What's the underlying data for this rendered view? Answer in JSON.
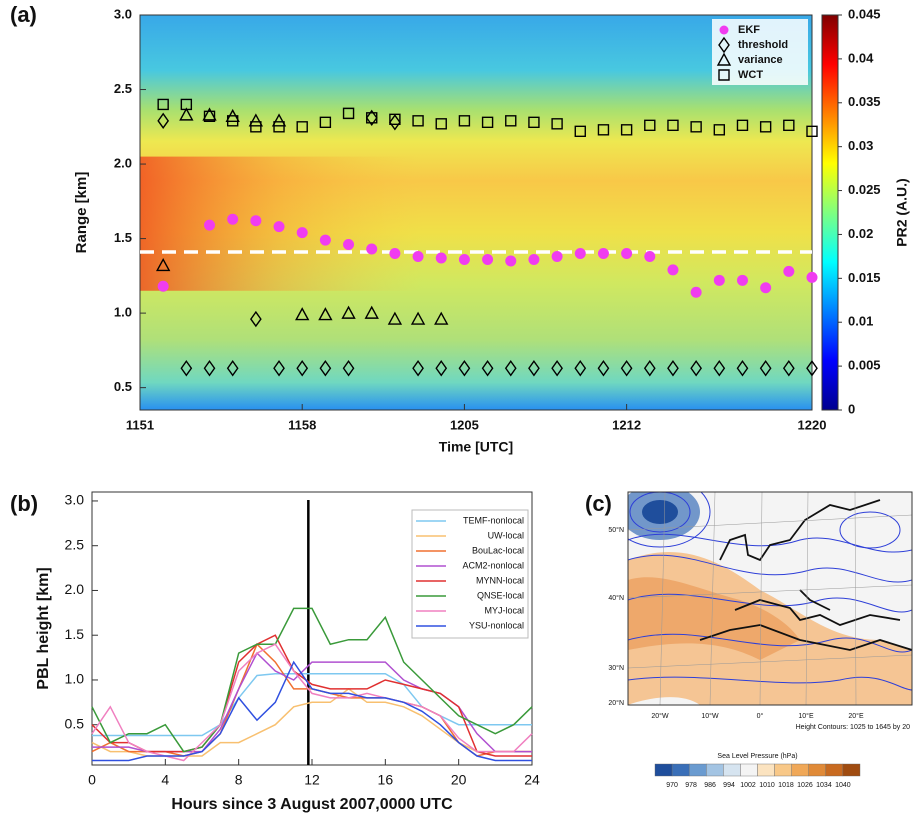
{
  "chart_data": [
    {
      "type": "scatter",
      "panel_label": "(a)",
      "xlabel": "Time [UTC]",
      "ylabel": "Range [km]",
      "xlim": [
        711,
        740
      ],
      "xticks": [
        {
          "value": 711,
          "label": "1151"
        },
        {
          "value": 718,
          "label": "1158"
        },
        {
          "value": 725,
          "label": "1205"
        },
        {
          "value": 732,
          "label": "1212"
        },
        {
          "value": 740,
          "label": "1220"
        }
      ],
      "ylim": [
        0.35,
        3.0
      ],
      "yticks": [
        0.5,
        {
          "value": 1,
          "label": "1.0"
        },
        1.5,
        {
          "value": 2,
          "label": "2.0"
        },
        2.5,
        {
          "value": 3,
          "label": "3.0"
        }
      ],
      "reference_line": {
        "y": 1.41,
        "color": "#ffffff"
      },
      "legend": "upper right",
      "series": [
        {
          "name": "EKF",
          "marker": "circle",
          "color": "#f03cf0",
          "x": [
            712,
            714,
            715,
            716,
            717,
            718,
            719,
            720,
            721,
            722,
            723,
            724,
            725,
            726,
            727,
            728,
            729,
            730,
            731,
            732,
            733,
            734,
            735,
            736,
            737,
            738,
            739,
            740
          ],
          "values": [
            1.18,
            1.59,
            1.63,
            1.62,
            1.58,
            1.54,
            1.49,
            1.46,
            1.43,
            1.4,
            1.38,
            1.37,
            1.36,
            1.36,
            1.35,
            1.36,
            1.38,
            1.4,
            1.4,
            1.4,
            1.38,
            1.29,
            1.14,
            1.22,
            1.22,
            1.17,
            1.28,
            1.24
          ]
        },
        {
          "name": "threshold",
          "marker": "diamond",
          "color": "#000000",
          "x": [
            712,
            713,
            714,
            715,
            716,
            717,
            718,
            719,
            720,
            721,
            722,
            723,
            724,
            725,
            726,
            727,
            728,
            729,
            730,
            731,
            732,
            733,
            734,
            735,
            736,
            737,
            738,
            739,
            740
          ],
          "values": [
            2.29,
            0.63,
            0.63,
            0.63,
            0.96,
            0.63,
            0.63,
            0.63,
            0.63,
            2.31,
            2.28,
            0.63,
            0.63,
            0.63,
            0.63,
            0.63,
            0.63,
            0.63,
            0.63,
            0.63,
            0.63,
            0.63,
            0.63,
            0.63,
            0.63,
            0.63,
            0.63,
            0.63,
            0.63
          ]
        },
        {
          "name": "variance",
          "marker": "triangle",
          "color": "#000000",
          "x": [
            712,
            713,
            714,
            715,
            716,
            717,
            718,
            719,
            720,
            721,
            722,
            723,
            724
          ],
          "values": [
            1.32,
            2.33,
            2.33,
            2.32,
            2.29,
            2.29,
            0.99,
            0.99,
            1.0,
            1.0,
            0.96,
            0.96,
            0.96
          ]
        },
        {
          "name": "WCT",
          "marker": "square",
          "color": "#000000",
          "x": [
            712,
            713,
            714,
            715,
            716,
            717,
            718,
            719,
            720,
            721,
            722,
            723,
            724,
            725,
            726,
            727,
            728,
            729,
            730,
            731,
            732,
            733,
            734,
            735,
            736,
            737,
            738,
            739,
            740
          ],
          "values": [
            2.4,
            2.4,
            2.32,
            2.29,
            2.25,
            2.25,
            2.25,
            2.28,
            2.34,
            2.31,
            2.3,
            2.29,
            2.27,
            2.29,
            2.28,
            2.29,
            2.28,
            2.27,
            2.22,
            2.23,
            2.23,
            2.26,
            2.26,
            2.25,
            2.23,
            2.26,
            2.25,
            2.26,
            2.22
          ]
        }
      ],
      "colorbar": {
        "label": "PR2 (A.U.)",
        "lim": [
          0,
          0.045
        ],
        "ticks": [
          0,
          0.005,
          0.01,
          0.015,
          0.02,
          0.025,
          0.03,
          0.035,
          0.04,
          0.045
        ]
      }
    },
    {
      "type": "line",
      "panel_label": "(b)",
      "xlabel": "Hours since 3 August 2007,0000 UTC",
      "ylabel": "PBL height [km]",
      "x": [
        0,
        1,
        2,
        3,
        4,
        5,
        6,
        7,
        8,
        9,
        10,
        11,
        12,
        13,
        14,
        15,
        16,
        17,
        18,
        19,
        20,
        21,
        22,
        23,
        24
      ],
      "xlim": [
        0,
        24
      ],
      "xticks": [
        0,
        4,
        8,
        12,
        16,
        20,
        24
      ],
      "ylim": [
        0.05,
        3.1
      ],
      "yticks": [
        0.5,
        {
          "value": 1,
          "label": "1.0"
        },
        1.5,
        {
          "value": 2,
          "label": "2.0"
        },
        2.5,
        {
          "value": 3,
          "label": "3.0"
        }
      ],
      "vline": 11.8,
      "legend": "upper right",
      "series": [
        {
          "name": "TEMF-nonlocal",
          "color": "#7ec8f0",
          "values": [
            0.38,
            0.38,
            0.38,
            0.38,
            0.38,
            0.38,
            0.38,
            0.5,
            0.8,
            1.05,
            1.07,
            1.07,
            1.07,
            1.07,
            1.07,
            1.07,
            1.07,
            0.95,
            0.7,
            0.6,
            0.5,
            0.5,
            0.5,
            0.5,
            0.5
          ]
        },
        {
          "name": "UW-local",
          "color": "#f8c070",
          "values": [
            0.3,
            0.2,
            0.2,
            0.15,
            0.15,
            0.15,
            0.15,
            0.3,
            0.3,
            0.4,
            0.5,
            0.7,
            0.75,
            0.75,
            0.9,
            0.75,
            0.75,
            0.7,
            0.6,
            0.45,
            0.3,
            0.2,
            0.2,
            0.2,
            0.2
          ]
        },
        {
          "name": "BouLac-local",
          "color": "#f07030",
          "values": [
            0.2,
            0.3,
            0.2,
            0.2,
            0.2,
            0.15,
            0.2,
            0.4,
            0.9,
            1.4,
            1.2,
            0.9,
            0.9,
            0.85,
            0.8,
            0.8,
            0.8,
            0.75,
            0.7,
            0.6,
            0.3,
            0.15,
            0.2,
            0.2,
            0.2
          ]
        },
        {
          "name": "ACM2-nonlocal",
          "color": "#b050d0",
          "values": [
            0.25,
            0.25,
            0.25,
            0.2,
            0.2,
            0.2,
            0.2,
            0.45,
            0.9,
            1.3,
            1.1,
            1.0,
            1.2,
            1.2,
            1.2,
            1.2,
            1.2,
            1.0,
            0.9,
            0.85,
            0.7,
            0.4,
            0.2,
            0.2,
            0.2
          ]
        },
        {
          "name": "MYNN-local",
          "color": "#e03030",
          "values": [
            0.5,
            0.3,
            0.3,
            0.2,
            0.2,
            0.2,
            0.25,
            0.5,
            1.2,
            1.4,
            1.5,
            1.1,
            0.95,
            0.9,
            0.9,
            0.9,
            1.0,
            0.95,
            0.9,
            0.85,
            0.7,
            0.2,
            0.15,
            0.15,
            0.15
          ]
        },
        {
          "name": "QNSE-local",
          "color": "#3a9a3a",
          "values": [
            0.7,
            0.3,
            0.4,
            0.4,
            0.5,
            0.2,
            0.25,
            0.5,
            1.3,
            1.4,
            1.4,
            1.8,
            1.8,
            1.4,
            1.45,
            1.45,
            1.7,
            1.2,
            1.0,
            0.8,
            0.6,
            0.5,
            0.4,
            0.5,
            0.7
          ]
        },
        {
          "name": "MYJ-local",
          "color": "#f080c0",
          "values": [
            0.4,
            0.7,
            0.3,
            0.2,
            0.15,
            0.1,
            0.3,
            0.5,
            1.1,
            1.3,
            1.4,
            1.1,
            0.85,
            0.8,
            0.8,
            0.85,
            0.8,
            0.75,
            0.7,
            0.6,
            0.35,
            0.2,
            0.2,
            0.2,
            0.4
          ]
        },
        {
          "name": "YSU-nonlocal",
          "color": "#3050e0",
          "values": [
            0.1,
            0.1,
            0.1,
            0.15,
            0.15,
            0.15,
            0.2,
            0.4,
            0.8,
            0.55,
            0.75,
            1.2,
            0.9,
            0.85,
            0.85,
            0.8,
            0.8,
            0.75,
            0.65,
            0.5,
            0.3,
            0.15,
            0.1,
            0.1,
            0.1
          ]
        }
      ]
    }
  ],
  "map": {
    "panel_label": "(c)",
    "lat_labels": [
      "50°N",
      "40°N",
      "30°N",
      "20°N"
    ],
    "lon_labels": [
      "20°W",
      "10°W",
      "0°",
      "10°E",
      "20°E"
    ],
    "contour_note": "Height Contours: 1025 to 1645 by 20",
    "colorbar": {
      "title": "Sea Level Pressure (hPa)",
      "ticks": [
        970,
        978,
        986,
        994,
        1002,
        1010,
        1018,
        1026,
        1034,
        1040
      ],
      "colors": [
        "#1f4e9c",
        "#3a6fb8",
        "#6a9bd0",
        "#a3c4e3",
        "#d6e4f0",
        "#f4f4f4",
        "#fbe3c0",
        "#f8c888",
        "#f0a858",
        "#e08a38",
        "#c86a20",
        "#a04c10"
      ]
    }
  }
}
